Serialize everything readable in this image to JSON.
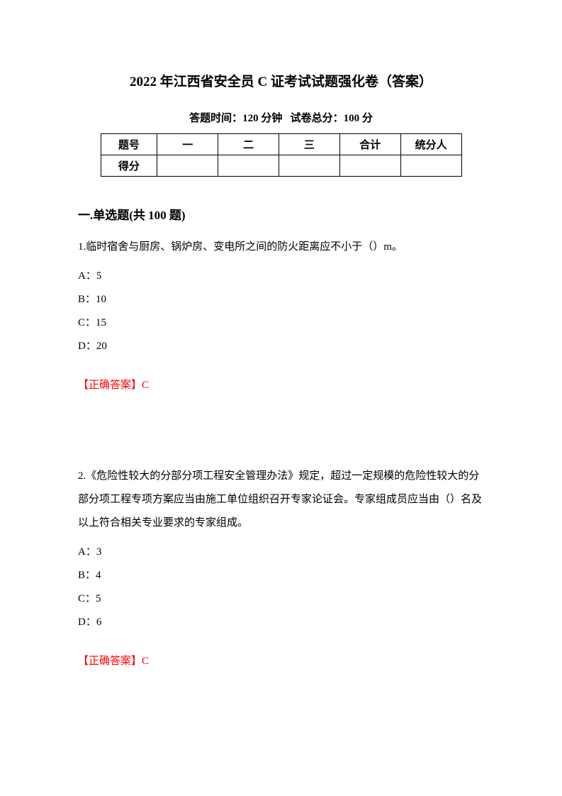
{
  "title": "2022 年江西省安全员 C 证考试试题强化卷（答案）",
  "subtitle_time_label": "答题时间：",
  "subtitle_time_value": "120 分钟",
  "subtitle_score_label": "试卷总分：",
  "subtitle_score_value": "100 分",
  "table": {
    "row1_label": "题号",
    "col1": "一",
    "col2": "二",
    "col3": "三",
    "col4": "合计",
    "col5": "统分人",
    "row2_label": "得分"
  },
  "section_title": "一.单选题(共 100 题)",
  "q1": {
    "text": "1.临时宿舍与厨房、锅炉房、变电所之间的防火距离应不小于（）m。",
    "optA": "A：5",
    "optB": "B：10",
    "optC": "C：15",
    "optD": "D：20",
    "answer": "【正确答案】C"
  },
  "q2": {
    "text": "2.《危险性较大的分部分项工程安全管理办法》规定，超过一定规模的危险性较大的分部分项工程专项方案应当由施工单位组织召开专家论证会。专家组成员应当由（）名及以上符合相关专业要求的专家组成。",
    "optA": "A：3",
    "optB": "B：4",
    "optC": "C：5",
    "optD": "D：6",
    "answer": "【正确答案】C"
  },
  "colors": {
    "text": "#000000",
    "answer": "#ff0000",
    "background": "#ffffff",
    "border": "#000000"
  }
}
